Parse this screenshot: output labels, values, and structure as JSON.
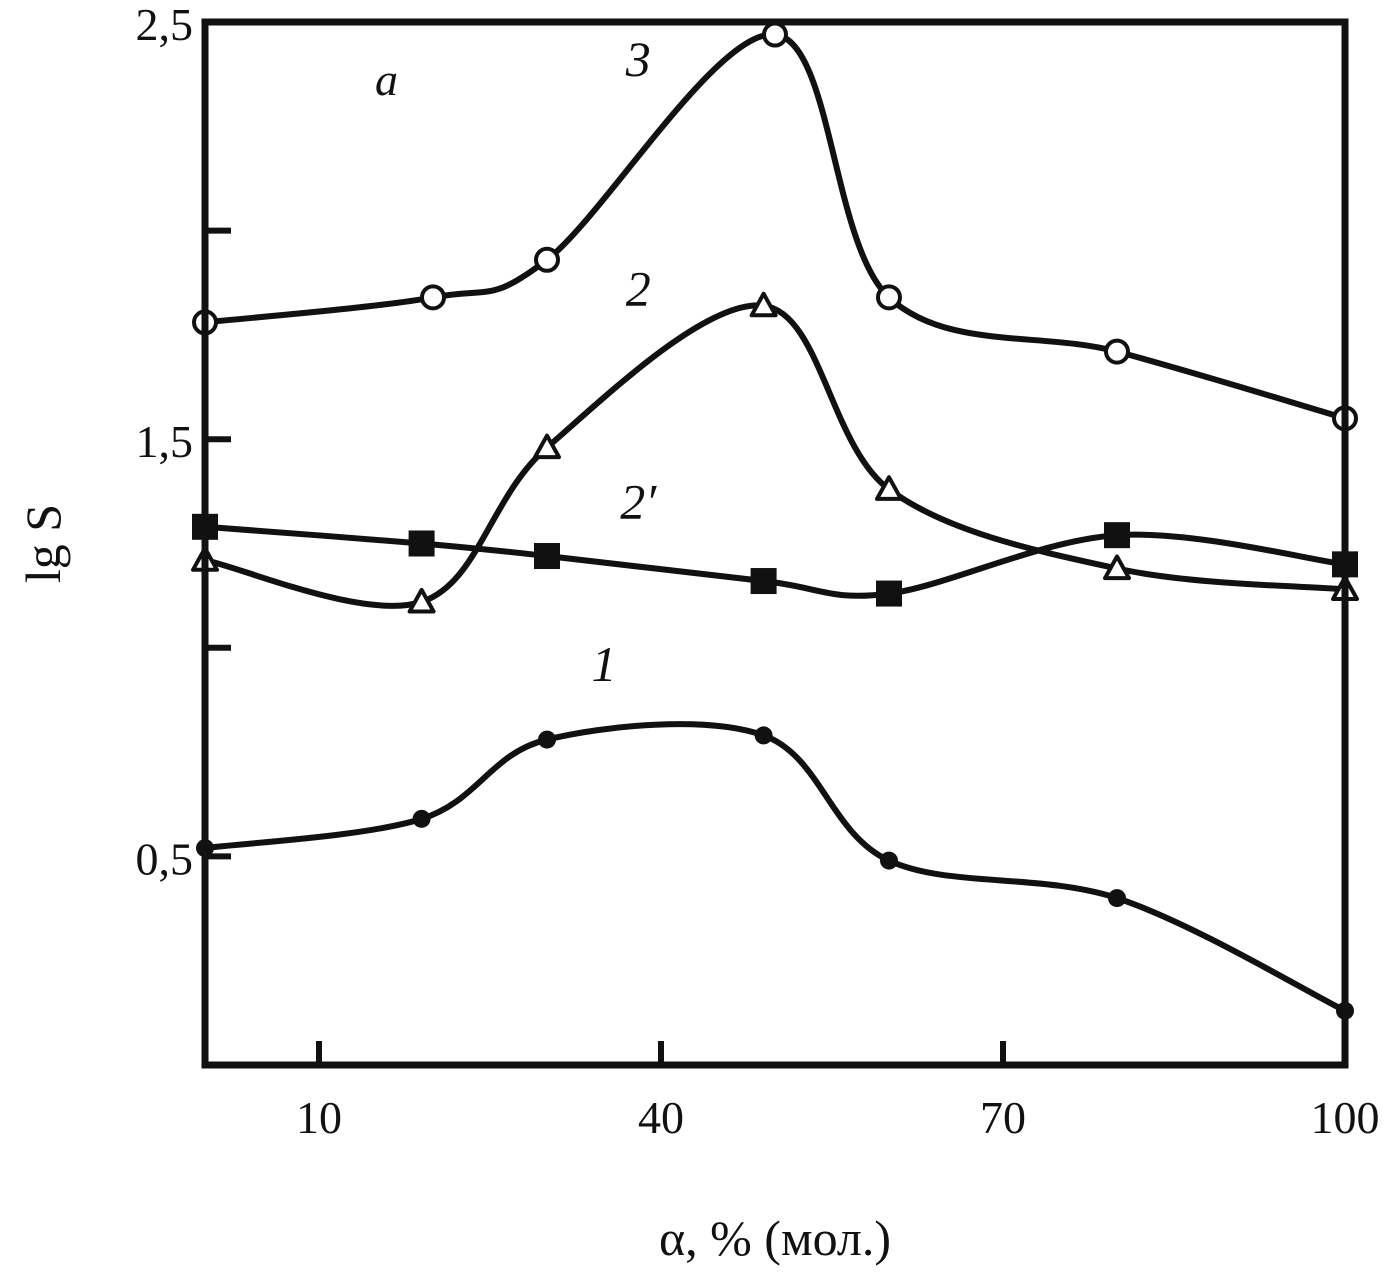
{
  "chart_data": {
    "type": "line",
    "panel_label": "a",
    "xlabel": "α, % (мол.)",
    "ylabel": "lg S",
    "xlim": [
      0,
      100
    ],
    "ylim": [
      0,
      2.5
    ],
    "x_ticks": [
      10,
      40,
      70,
      100
    ],
    "x_tick_labels": [
      "10",
      "40",
      "70",
      "100"
    ],
    "y_ticks": [
      0.5,
      1.0,
      1.5,
      2.0,
      2.5
    ],
    "y_tick_labels": [
      "0,5",
      "",
      "1,5",
      "",
      "2,5"
    ],
    "grid": false,
    "legend": "none",
    "series": [
      {
        "name": "3",
        "marker": "circle-open",
        "x": [
          0,
          20,
          30,
          50,
          60,
          80,
          100
        ],
        "y": [
          1.78,
          1.84,
          1.93,
          2.47,
          1.84,
          1.71,
          1.55
        ],
        "label_at": [
          38,
          2.37
        ]
      },
      {
        "name": "2",
        "marker": "triangle-open",
        "x": [
          0,
          19,
          30,
          49,
          60,
          80,
          100
        ],
        "y": [
          1.21,
          1.11,
          1.48,
          1.82,
          1.38,
          1.19,
          1.14
        ],
        "label_at": [
          38,
          1.82
        ]
      },
      {
        "name": "2′",
        "marker": "square-filled",
        "x": [
          0,
          19,
          30,
          49,
          60,
          80,
          100
        ],
        "y": [
          1.29,
          1.25,
          1.22,
          1.16,
          1.13,
          1.27,
          1.2
        ],
        "label_at": [
          38,
          1.31
        ]
      },
      {
        "name": "1",
        "marker": "circle-filled",
        "x": [
          0,
          19,
          30,
          49,
          60,
          80,
          100
        ],
        "y": [
          0.52,
          0.59,
          0.78,
          0.79,
          0.49,
          0.4,
          0.13
        ],
        "label_at": [
          35,
          0.92
        ]
      }
    ]
  }
}
